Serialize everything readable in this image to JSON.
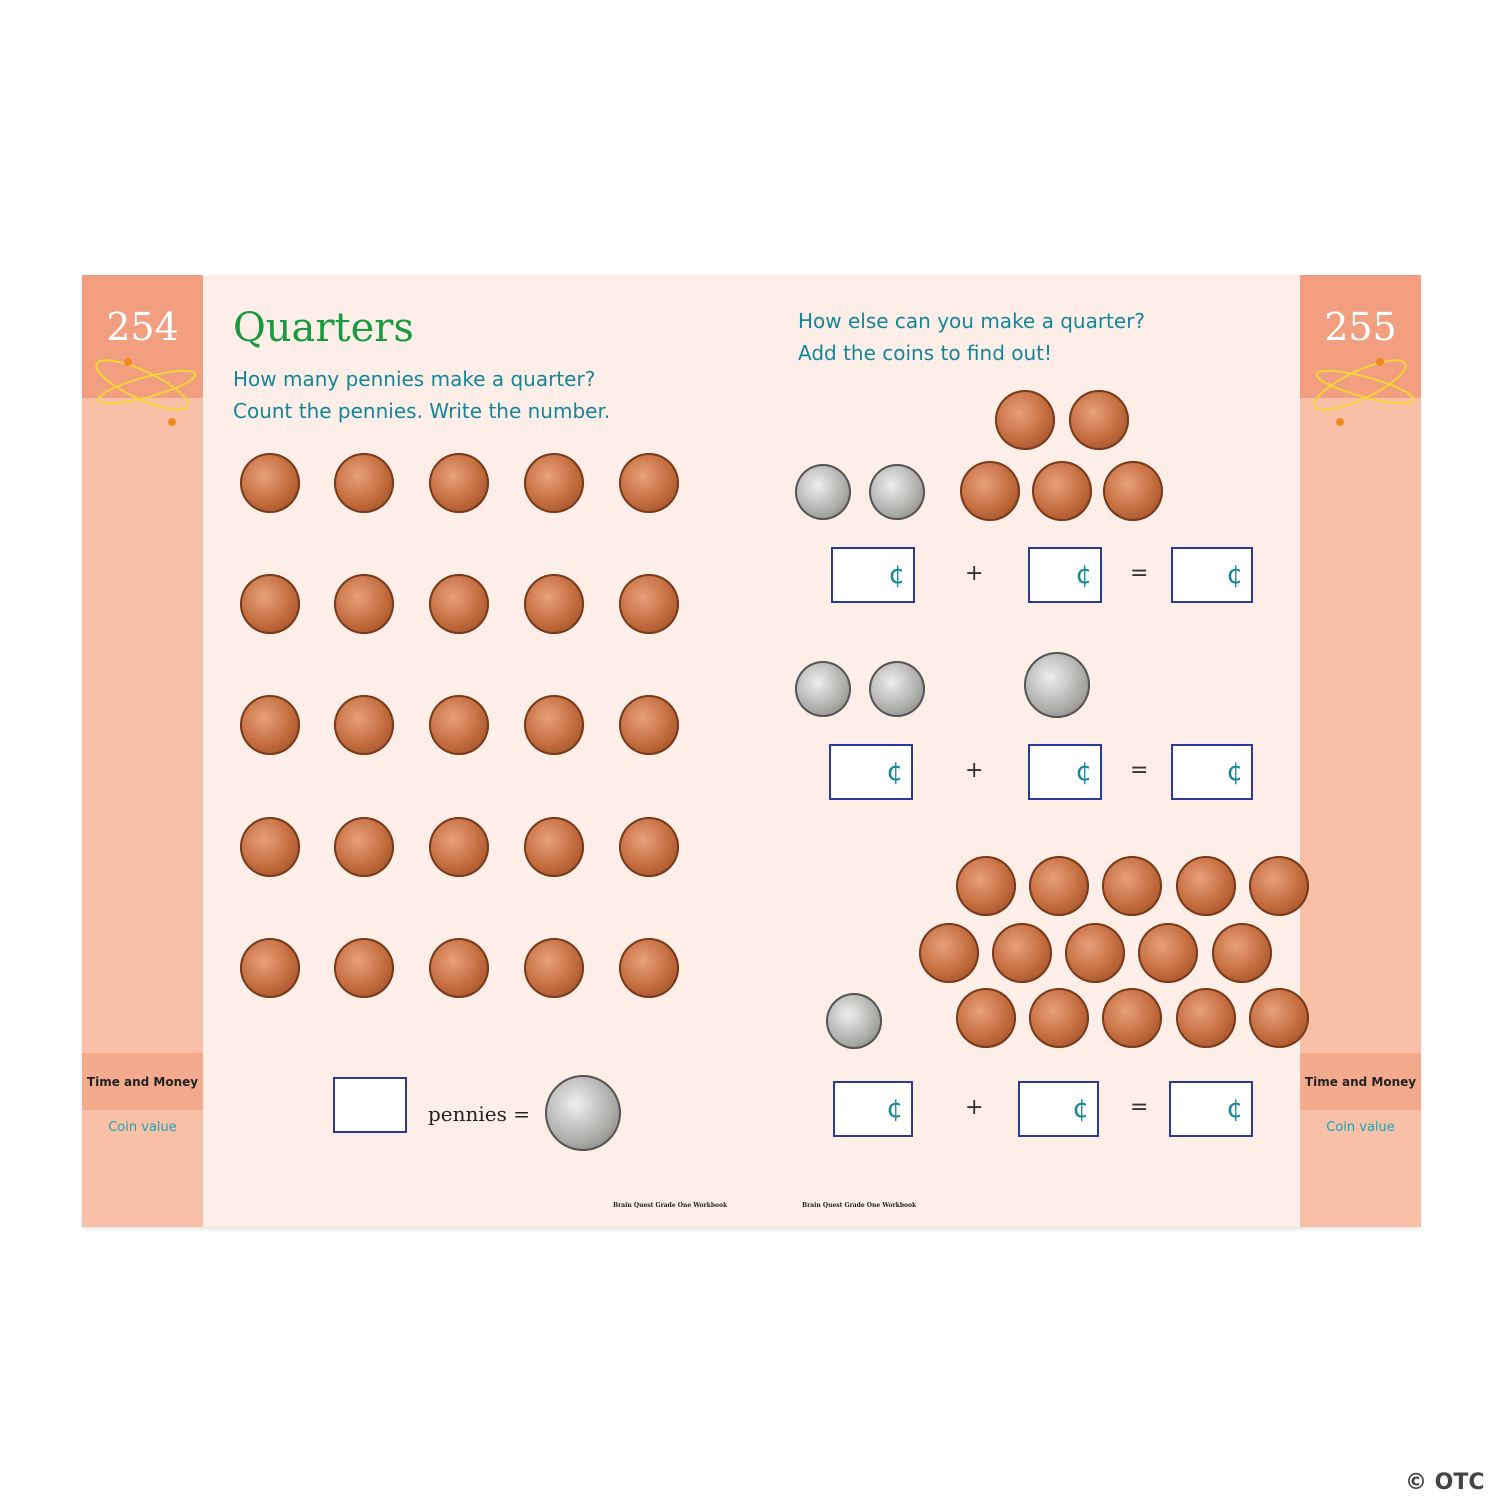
{
  "left_page": {
    "page_number": "254",
    "title": "Quarters",
    "instructions": [
      "How many pennies make a quarter?",
      "Count the pennies. Write the number."
    ],
    "pennies_count_shown": 25,
    "equation_label": "pennies =",
    "section": "Time and Money",
    "subsection": "Coin value",
    "footer": "Brain Quest Grade One Workbook"
  },
  "right_page": {
    "page_number": "255",
    "instructions": [
      "How else can you make a quarter?",
      "Add the coins to find out!"
    ],
    "cent_symbol": "¢",
    "plus": "+",
    "equals": "=",
    "section": "Time and Money",
    "subsection": "Coin value",
    "footer": "Brain Quest Grade One Workbook",
    "problems": [
      {
        "left": "2 dimes",
        "right": "5 pennies"
      },
      {
        "left": "2 dimes",
        "right": "1 nickel"
      },
      {
        "left": "1 dime",
        "right": "15 pennies"
      }
    ]
  },
  "watermark": "© OTC",
  "colors": {
    "band": "#f8c0a6",
    "band_top": "#f29e80",
    "page": "#fdeee8",
    "title": "#1a9a3e",
    "instruction": "#13869a"
  }
}
